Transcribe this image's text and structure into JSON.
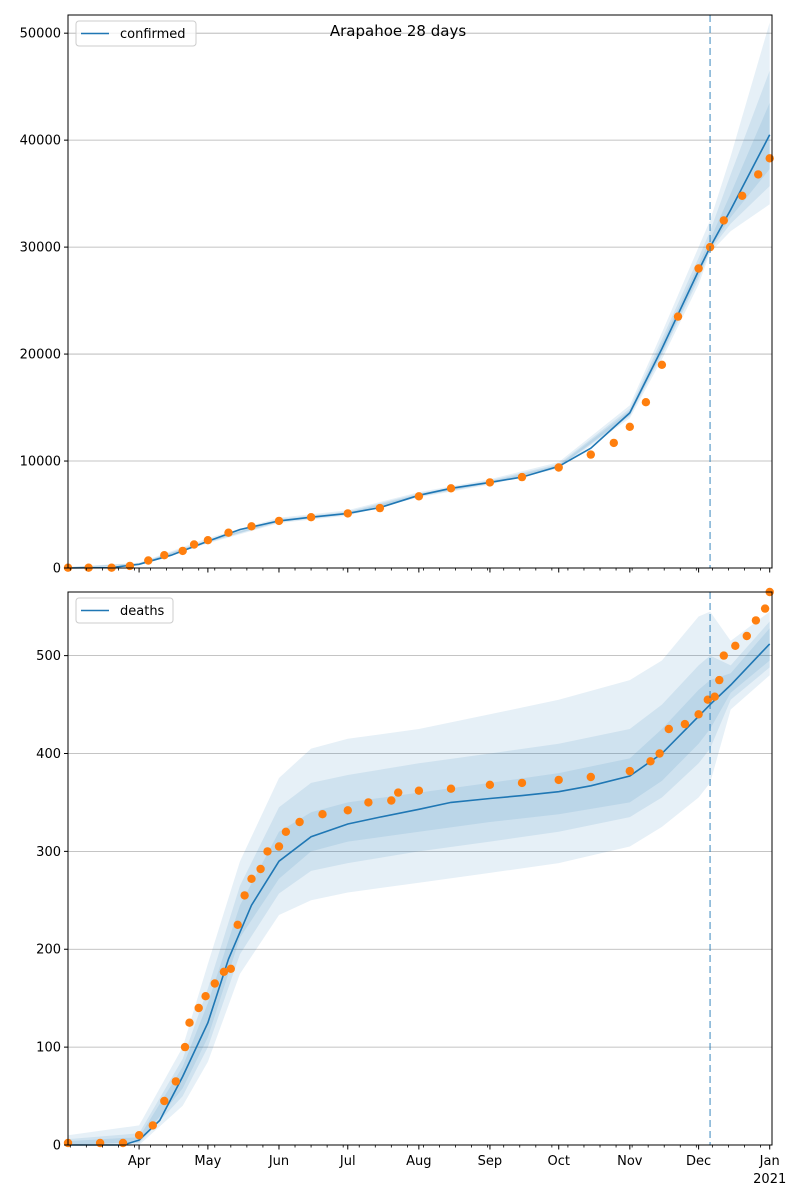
{
  "figure": {
    "title": "Arapahoe 28 days"
  },
  "colors": {
    "line": "#1f77b4",
    "points": "#ff7f0e",
    "band": "#1f77b4",
    "grid": "#b0b0b0"
  },
  "chart_data": [
    {
      "type": "line",
      "title": "Arapahoe 28 days",
      "legend": {
        "label": "confirmed",
        "placement": "top-left"
      },
      "grid": "y",
      "x_axis": {
        "range": [
          "2020-03-01",
          "2021-01-01"
        ],
        "ticks": [
          "Apr",
          "May",
          "Jun",
          "Jul",
          "Aug",
          "Sep",
          "Oct",
          "Nov",
          "Dec",
          "Jan"
        ],
        "tick_dates": [
          "2020-04-01",
          "2020-05-01",
          "2020-06-01",
          "2020-07-01",
          "2020-08-01",
          "2020-09-01",
          "2020-10-01",
          "2020-11-01",
          "2020-12-01",
          "2021-01-01"
        ],
        "year_label": "2021"
      },
      "ylim": [
        0,
        51700
      ],
      "yticks": [
        0,
        10000,
        20000,
        30000,
        40000,
        50000
      ],
      "ytick_labels": [
        "0",
        "10000",
        "20000",
        "30000",
        "40000",
        "50000"
      ],
      "forecast_start": "2020-12-06",
      "model_line": {
        "x": [
          "2020-03-01",
          "2020-03-20",
          "2020-04-01",
          "2020-04-15",
          "2020-05-01",
          "2020-05-15",
          "2020-06-01",
          "2020-06-15",
          "2020-07-01",
          "2020-07-15",
          "2020-08-01",
          "2020-08-15",
          "2020-09-01",
          "2020-09-15",
          "2020-10-01",
          "2020-10-15",
          "2020-11-01",
          "2020-11-15",
          "2020-12-01",
          "2020-12-06",
          "2020-12-15",
          "2021-01-01"
        ],
        "y": [
          0,
          50,
          350,
          1200,
          2500,
          3600,
          4400,
          4750,
          5100,
          5650,
          6800,
          7450,
          8000,
          8500,
          9500,
          11200,
          14500,
          20500,
          27800,
          30000,
          33500,
          40500
        ]
      },
      "bands": [
        {
          "x": [
            "2020-03-01",
            "2020-04-01",
            "2020-05-01",
            "2020-06-01",
            "2020-07-01",
            "2020-08-01",
            "2020-09-01",
            "2020-10-01",
            "2020-11-01",
            "2020-11-15",
            "2020-12-01",
            "2020-12-06",
            "2020-12-15",
            "2021-01-01"
          ],
          "lower": [
            0,
            300,
            2300,
            4200,
            4900,
            6600,
            7800,
            9300,
            14000,
            19500,
            26500,
            29500,
            31500,
            34000
          ],
          "upper": [
            100,
            500,
            2800,
            4700,
            5400,
            7100,
            8300,
            9900,
            15200,
            22000,
            30000,
            32500,
            38500,
            51000
          ]
        },
        {
          "x": [
            "2020-03-01",
            "2020-04-01",
            "2020-05-01",
            "2020-06-01",
            "2020-07-01",
            "2020-08-01",
            "2020-09-01",
            "2020-10-01",
            "2020-11-01",
            "2020-11-15",
            "2020-12-01",
            "2020-12-06",
            "2020-12-15",
            "2021-01-01"
          ],
          "lower": [
            0,
            320,
            2380,
            4280,
            4980,
            6680,
            7880,
            9380,
            14200,
            19900,
            27000,
            29700,
            32200,
            35700
          ],
          "upper": [
            80,
            450,
            2650,
            4580,
            5280,
            6980,
            8180,
            9720,
            14900,
            21400,
            29000,
            31500,
            36800,
            46500
          ]
        },
        {
          "x": [
            "2020-03-01",
            "2020-04-01",
            "2020-05-01",
            "2020-06-01",
            "2020-07-01",
            "2020-08-01",
            "2020-09-01",
            "2020-10-01",
            "2020-11-01",
            "2020-11-15",
            "2020-12-01",
            "2020-12-06",
            "2020-12-15",
            "2021-01-01"
          ],
          "lower": [
            0,
            330,
            2430,
            4330,
            5030,
            6730,
            7930,
            9430,
            14300,
            20100,
            27300,
            29850,
            32800,
            37300
          ],
          "upper": [
            60,
            410,
            2560,
            4480,
            5180,
            6880,
            8080,
            9620,
            14700,
            21000,
            28400,
            30700,
            35000,
            43500
          ]
        }
      ],
      "observed": {
        "x": [
          "2020-03-01",
          "2020-03-10",
          "2020-03-20",
          "2020-03-28",
          "2020-04-05",
          "2020-04-12",
          "2020-04-20",
          "2020-04-25",
          "2020-05-01",
          "2020-05-10",
          "2020-05-20",
          "2020-06-01",
          "2020-06-15",
          "2020-07-01",
          "2020-07-15",
          "2020-08-01",
          "2020-08-15",
          "2020-09-01",
          "2020-09-15",
          "2020-10-01",
          "2020-10-15",
          "2020-10-25",
          "2020-11-01",
          "2020-11-08",
          "2020-11-15",
          "2020-11-22",
          "2020-12-01",
          "2020-12-06",
          "2020-12-12",
          "2020-12-20",
          "2020-12-27",
          "2021-01-01"
        ],
        "y": [
          30,
          30,
          30,
          200,
          700,
          1200,
          1600,
          2200,
          2600,
          3300,
          3900,
          4400,
          4750,
          5100,
          5600,
          6700,
          7450,
          8000,
          8500,
          9400,
          10600,
          11700,
          13200,
          15500,
          19000,
          23500,
          28000,
          30000,
          32500,
          34800,
          36800,
          38300
        ]
      }
    },
    {
      "type": "line",
      "legend": {
        "label": "deaths",
        "placement": "top-left"
      },
      "grid": "y",
      "x_axis": {
        "range": [
          "2020-03-01",
          "2021-01-01"
        ],
        "ticks": [
          "Apr",
          "May",
          "Jun",
          "Jul",
          "Aug",
          "Sep",
          "Oct",
          "Nov",
          "Dec",
          "Jan"
        ],
        "tick_dates": [
          "2020-04-01",
          "2020-05-01",
          "2020-06-01",
          "2020-07-01",
          "2020-08-01",
          "2020-09-01",
          "2020-10-01",
          "2020-11-01",
          "2020-12-01",
          "2021-01-01"
        ],
        "year_label": "2021"
      },
      "ylim": [
        0,
        565
      ],
      "yticks": [
        0,
        100,
        200,
        300,
        400,
        500
      ],
      "ytick_labels": [
        "0",
        "100",
        "200",
        "300",
        "400",
        "500"
      ],
      "forecast_start": "2020-12-06",
      "model_line": {
        "x": [
          "2020-03-01",
          "2020-03-25",
          "2020-04-01",
          "2020-04-10",
          "2020-04-20",
          "2020-05-01",
          "2020-05-10",
          "2020-05-20",
          "2020-06-01",
          "2020-06-15",
          "2020-07-01",
          "2020-07-15",
          "2020-08-01",
          "2020-08-15",
          "2020-09-01",
          "2020-09-15",
          "2020-10-01",
          "2020-10-15",
          "2020-11-01",
          "2020-11-15",
          "2020-12-01",
          "2020-12-06",
          "2020-12-15",
          "2021-01-01"
        ],
        "y": [
          0,
          0,
          5,
          25,
          70,
          125,
          190,
          245,
          290,
          315,
          328,
          335,
          343,
          350,
          354,
          357,
          361,
          367,
          377,
          400,
          438,
          450,
          470,
          512
        ]
      },
      "bands": [
        {
          "x": [
            "2020-03-01",
            "2020-04-01",
            "2020-04-20",
            "2020-05-01",
            "2020-05-15",
            "2020-06-01",
            "2020-06-15",
            "2020-07-01",
            "2020-08-01",
            "2020-09-01",
            "2020-10-01",
            "2020-11-01",
            "2020-11-15",
            "2020-12-01",
            "2020-12-06",
            "2020-12-15",
            "2021-01-01"
          ],
          "lower": [
            0,
            0,
            40,
            85,
            175,
            235,
            250,
            258,
            268,
            278,
            288,
            305,
            325,
            355,
            370,
            445,
            480
          ],
          "upper": [
            10,
            20,
            100,
            185,
            290,
            375,
            405,
            415,
            425,
            440,
            455,
            475,
            495,
            540,
            545,
            515,
            545
          ]
        },
        {
          "x": [
            "2020-03-01",
            "2020-04-01",
            "2020-04-20",
            "2020-05-01",
            "2020-05-15",
            "2020-06-01",
            "2020-06-15",
            "2020-07-01",
            "2020-08-01",
            "2020-09-01",
            "2020-10-01",
            "2020-11-01",
            "2020-11-15",
            "2020-12-01",
            "2020-12-06",
            "2020-12-15",
            "2021-01-01"
          ],
          "lower": [
            0,
            2,
            50,
            100,
            195,
            257,
            280,
            288,
            300,
            310,
            320,
            335,
            355,
            390,
            405,
            455,
            488
          ],
          "upper": [
            6,
            12,
            88,
            160,
            265,
            345,
            370,
            378,
            390,
            400,
            410,
            425,
            450,
            490,
            500,
            490,
            535
          ]
        },
        {
          "x": [
            "2020-03-01",
            "2020-04-01",
            "2020-04-20",
            "2020-05-01",
            "2020-05-15",
            "2020-06-01",
            "2020-06-15",
            "2020-07-01",
            "2020-08-01",
            "2020-09-01",
            "2020-10-01",
            "2020-11-01",
            "2020-11-15",
            "2020-12-01",
            "2020-12-06",
            "2020-12-15",
            "2021-01-01"
          ],
          "lower": [
            0,
            3,
            58,
            110,
            212,
            272,
            300,
            310,
            320,
            330,
            338,
            350,
            372,
            410,
            425,
            462,
            495
          ],
          "upper": [
            4,
            8,
            80,
            145,
            245,
            320,
            340,
            350,
            360,
            370,
            380,
            395,
            425,
            465,
            475,
            482,
            528
          ]
        }
      ],
      "observed": {
        "x": [
          "2020-03-01",
          "2020-03-15",
          "2020-03-25",
          "2020-04-01",
          "2020-04-07",
          "2020-04-12",
          "2020-04-17",
          "2020-04-21",
          "2020-04-23",
          "2020-04-27",
          "2020-04-30",
          "2020-05-04",
          "2020-05-08",
          "2020-05-11",
          "2020-05-14",
          "2020-05-17",
          "2020-05-20",
          "2020-05-24",
          "2020-05-27",
          "2020-06-01",
          "2020-06-04",
          "2020-06-10",
          "2020-06-20",
          "2020-07-01",
          "2020-07-10",
          "2020-07-20",
          "2020-07-23",
          "2020-08-01",
          "2020-08-15",
          "2020-09-01",
          "2020-09-15",
          "2020-10-01",
          "2020-10-15",
          "2020-11-01",
          "2020-11-10",
          "2020-11-14",
          "2020-11-18",
          "2020-11-25",
          "2020-12-01",
          "2020-12-05",
          "2020-12-08",
          "2020-12-10",
          "2020-12-12",
          "2020-12-17",
          "2020-12-22",
          "2020-12-26",
          "2020-12-30",
          "2021-01-01"
        ],
        "y": [
          2,
          2,
          2,
          10,
          20,
          45,
          65,
          100,
          125,
          140,
          152,
          165,
          177,
          180,
          225,
          255,
          272,
          282,
          300,
          305,
          320,
          330,
          338,
          342,
          350,
          352,
          360,
          362,
          364,
          368,
          370,
          373,
          376,
          382,
          392,
          400,
          425,
          430,
          440,
          455,
          458,
          475,
          500,
          510,
          520,
          536,
          548,
          565
        ]
      }
    }
  ]
}
